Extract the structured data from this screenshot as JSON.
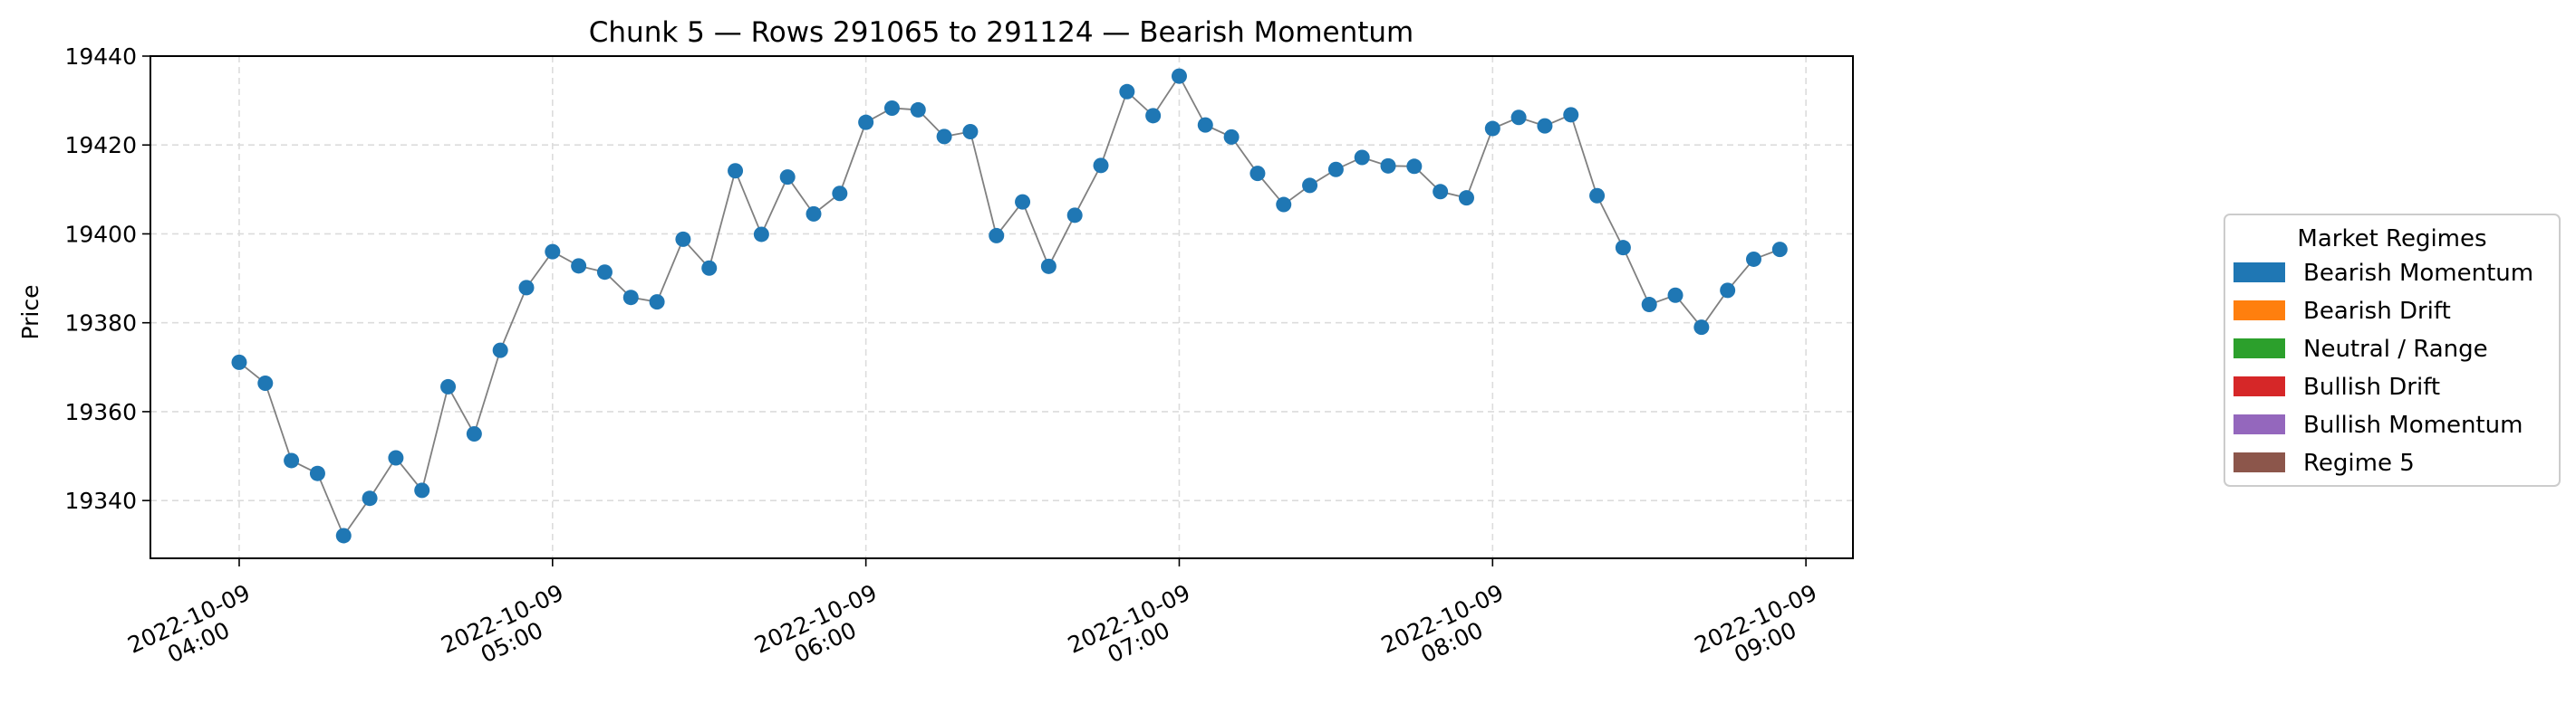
{
  "chart_data": {
    "type": "line",
    "title": "Chunk 5 — Rows 291065 to 291124 — Bearish Momentum",
    "xlabel": "",
    "ylabel": "Price",
    "ylim": [
      19327,
      19440
    ],
    "yticks": [
      19340,
      19360,
      19380,
      19400,
      19420,
      19440
    ],
    "xlim": [
      "2022-10-09 03:43",
      "2022-10-09 09:09"
    ],
    "xticks": [
      {
        "time": "2022-10-09 04:00",
        "line1": "2022-10-09",
        "line2": "04:00"
      },
      {
        "time": "2022-10-09 05:00",
        "line1": "2022-10-09",
        "line2": "05:00"
      },
      {
        "time": "2022-10-09 06:00",
        "line1": "2022-10-09",
        "line2": "06:00"
      },
      {
        "time": "2022-10-09 07:00",
        "line1": "2022-10-09",
        "line2": "07:00"
      },
      {
        "time": "2022-10-09 08:00",
        "line1": "2022-10-09",
        "line2": "08:00"
      },
      {
        "time": "2022-10-09 09:00",
        "line1": "2022-10-09",
        "line2": "09:00"
      }
    ],
    "grid": true,
    "marker_color": "#1f77b4",
    "line_color": "#808080",
    "series": [
      {
        "x": [
          "2022-10-09 04:00",
          "2022-10-09 04:05",
          "2022-10-09 04:10",
          "2022-10-09 04:15",
          "2022-10-09 04:20",
          "2022-10-09 04:25",
          "2022-10-09 04:30",
          "2022-10-09 04:35",
          "2022-10-09 04:40",
          "2022-10-09 04:45",
          "2022-10-09 04:50",
          "2022-10-09 04:55",
          "2022-10-09 05:00",
          "2022-10-09 05:05",
          "2022-10-09 05:10",
          "2022-10-09 05:15",
          "2022-10-09 05:20",
          "2022-10-09 05:25",
          "2022-10-09 05:30",
          "2022-10-09 05:35",
          "2022-10-09 05:40",
          "2022-10-09 05:45",
          "2022-10-09 05:50",
          "2022-10-09 05:55",
          "2022-10-09 06:00",
          "2022-10-09 06:05",
          "2022-10-09 06:10",
          "2022-10-09 06:15",
          "2022-10-09 06:20",
          "2022-10-09 06:25",
          "2022-10-09 06:30",
          "2022-10-09 06:35",
          "2022-10-09 06:40",
          "2022-10-09 06:45",
          "2022-10-09 06:50",
          "2022-10-09 06:55",
          "2022-10-09 07:00",
          "2022-10-09 07:05",
          "2022-10-09 07:10",
          "2022-10-09 07:15",
          "2022-10-09 07:20",
          "2022-10-09 07:25",
          "2022-10-09 07:30",
          "2022-10-09 07:35",
          "2022-10-09 07:40",
          "2022-10-09 07:45",
          "2022-10-09 07:50",
          "2022-10-09 07:55",
          "2022-10-09 08:00",
          "2022-10-09 08:05",
          "2022-10-09 08:10",
          "2022-10-09 08:15",
          "2022-10-09 08:20",
          "2022-10-09 08:25",
          "2022-10-09 08:30",
          "2022-10-09 08:35",
          "2022-10-09 08:40",
          "2022-10-09 08:45",
          "2022-10-09 08:50",
          "2022-10-09 08:55"
        ],
        "y": [
          19371.1,
          19366.4,
          19349.0,
          19346.1,
          19332.1,
          19340.5,
          19349.6,
          19342.3,
          19365.6,
          19355.0,
          19373.8,
          19387.9,
          19396.0,
          19392.8,
          19391.4,
          19385.7,
          19384.7,
          19398.8,
          19392.3,
          19414.2,
          19399.9,
          19412.8,
          19404.5,
          19409.1,
          19425.1,
          19428.3,
          19427.9,
          19421.9,
          19423.0,
          19399.6,
          19407.2,
          19392.7,
          19404.2,
          19415.4,
          19432.0,
          19426.6,
          19435.5,
          19424.5,
          19421.8,
          19413.6,
          19406.6,
          19410.9,
          19414.5,
          19417.2,
          19415.3,
          19415.2,
          19409.5,
          19408.1,
          19423.7,
          19426.2,
          19424.3,
          19426.8,
          19408.6,
          19396.9,
          19384.1,
          19386.2,
          19379.0,
          19387.3,
          19394.3,
          19396.5
        ]
      }
    ],
    "legend": {
      "title": "Market Regimes",
      "placement": "center-right",
      "entries": [
        {
          "label": "Bearish Momentum",
          "color": "#1f77b4"
        },
        {
          "label": "Bearish Drift",
          "color": "#ff7f0e"
        },
        {
          "label": "Neutral / Range",
          "color": "#2ca02c"
        },
        {
          "label": "Bullish Drift",
          "color": "#d62728"
        },
        {
          "label": "Bullish Momentum",
          "color": "#9467bd"
        },
        {
          "label": "Regime 5",
          "color": "#8c564b"
        }
      ]
    }
  }
}
